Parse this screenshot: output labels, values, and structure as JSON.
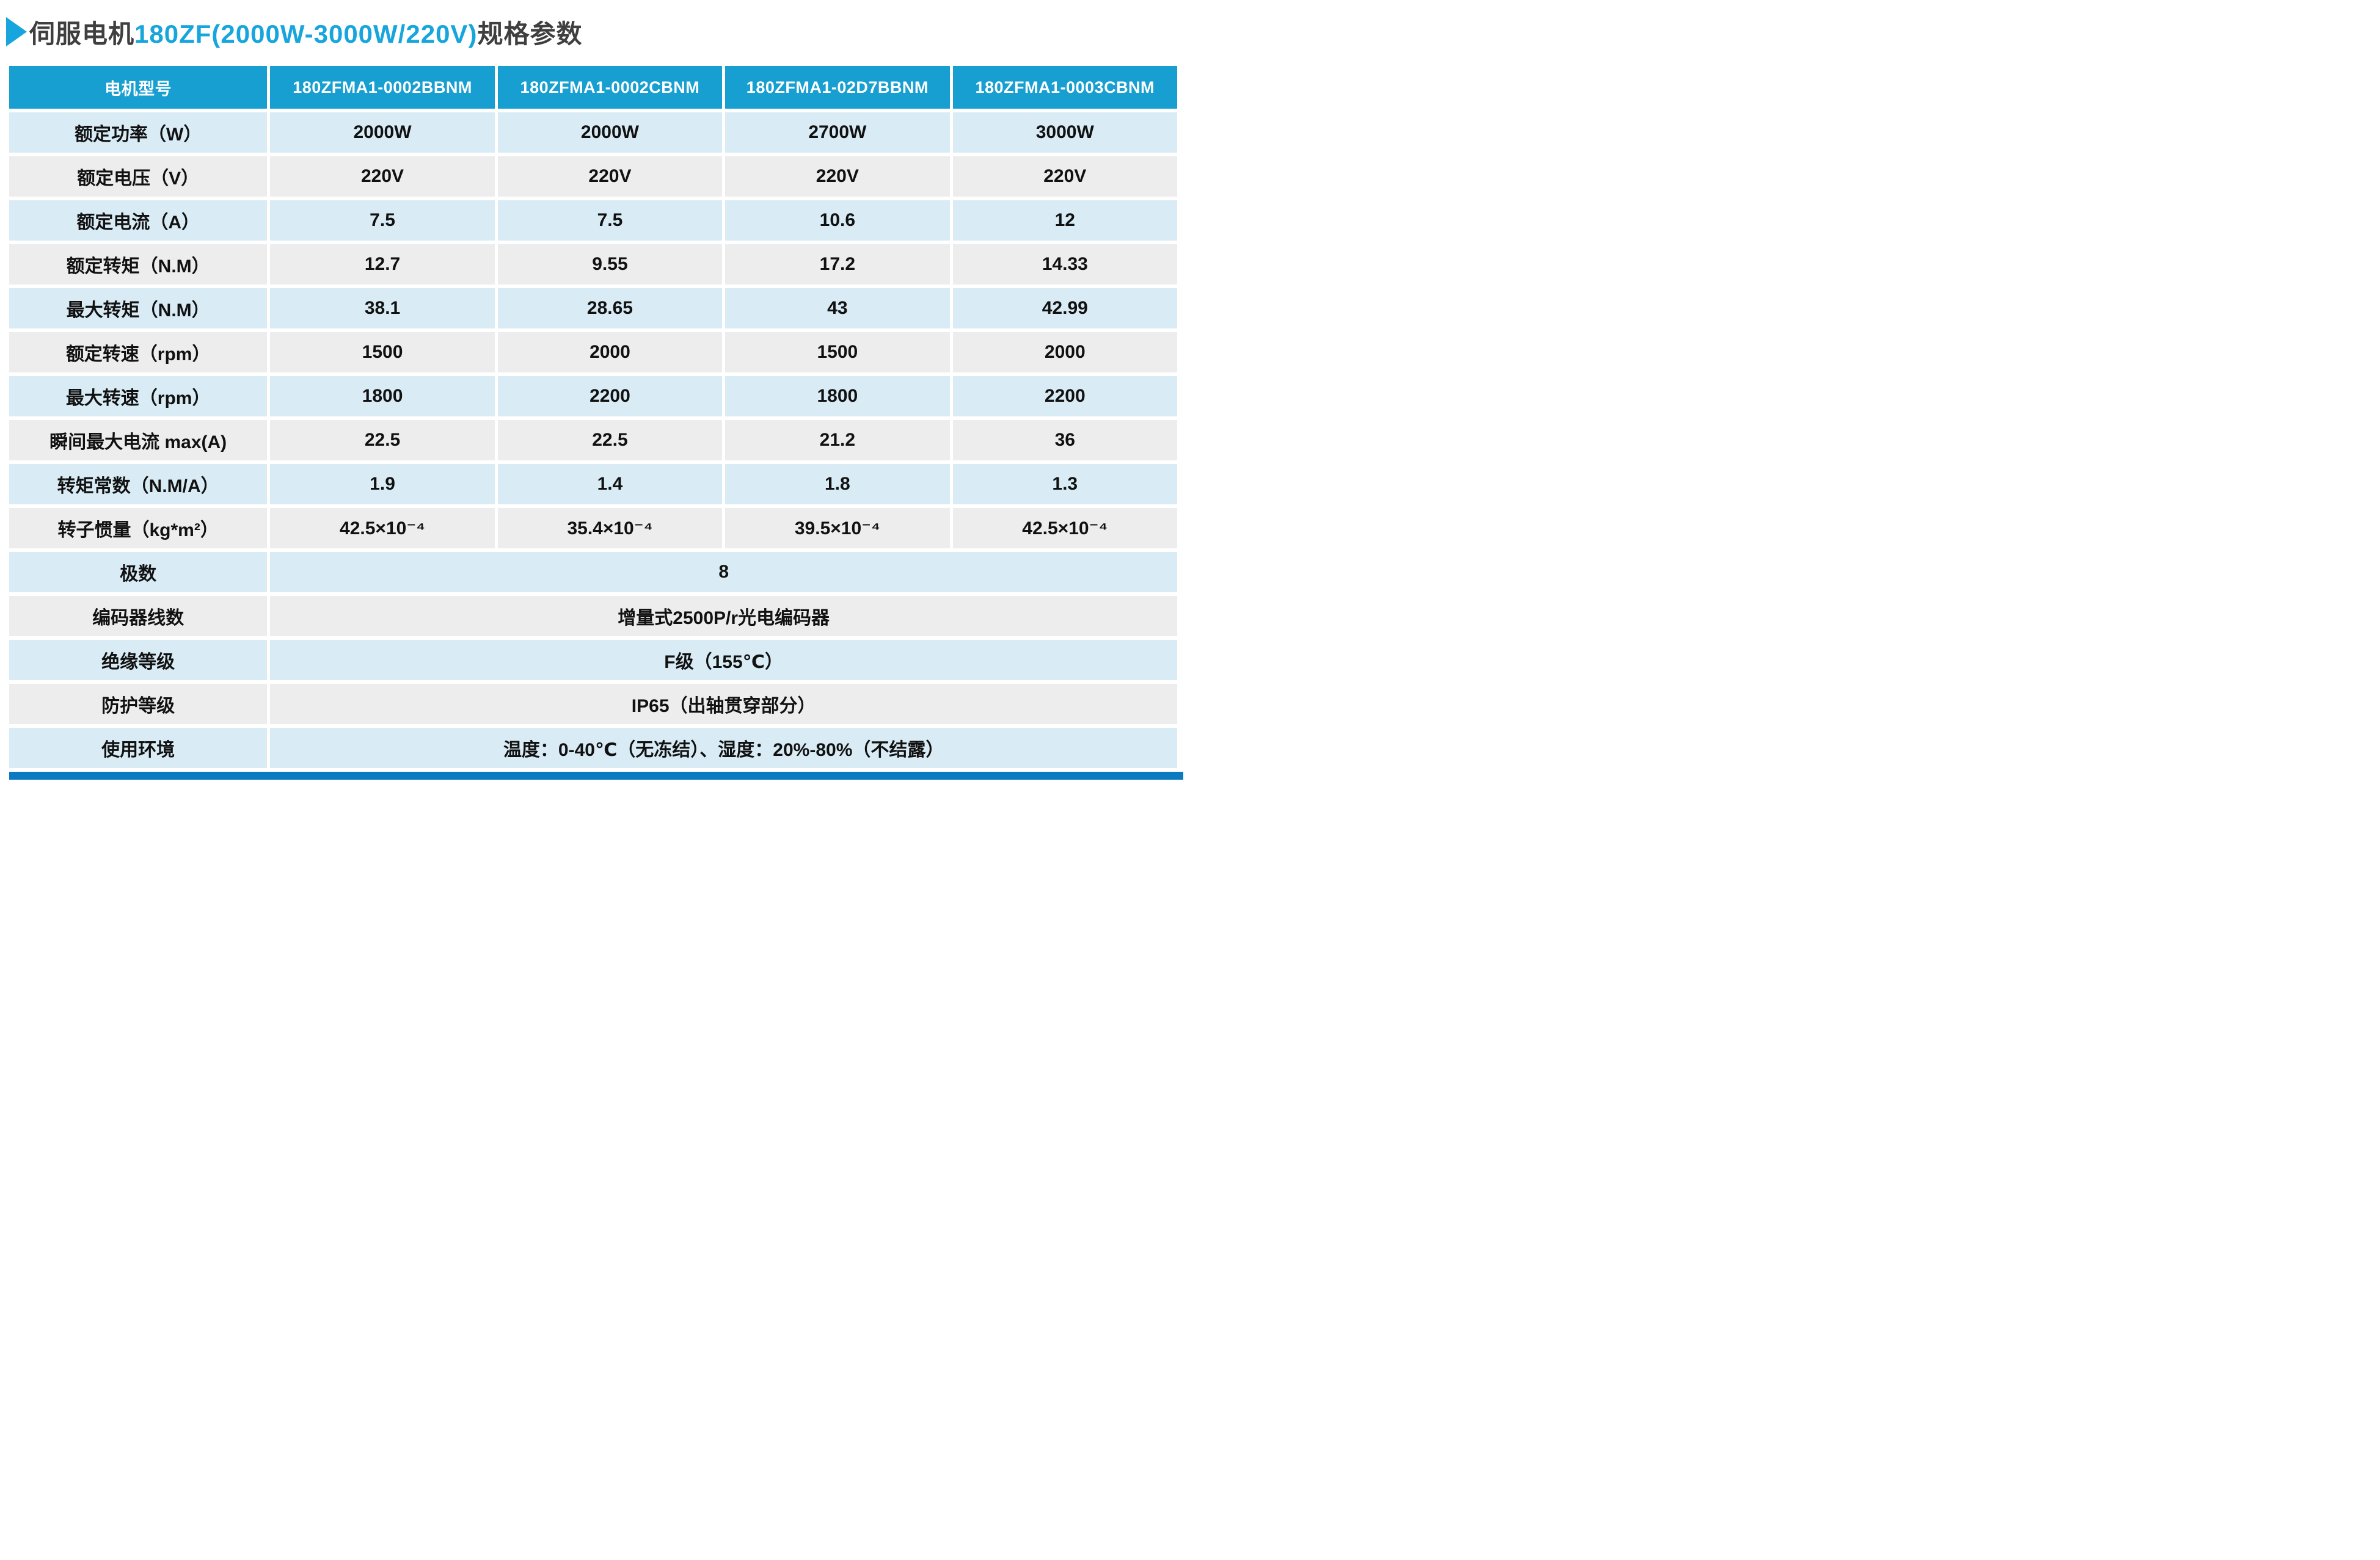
{
  "page": {
    "title": {
      "prefix": "伺服电机",
      "highlight": "180ZF(2000W-3000W/220V)",
      "suffix": "规格参数"
    },
    "colors": {
      "accent_blue": "#16a5dc",
      "header_blue": "#189fd1",
      "row_light_blue": "#d9ecf6",
      "row_gray": "#ededed",
      "title_dark": "#3f3f3f",
      "bottom_bar_blue": "#0b7ac1"
    }
  },
  "table": {
    "header": [
      "电机型号",
      "180ZFMA1-0002BBNM",
      "180ZFMA1-0002CBNM",
      "180ZFMA1-02D7BBNM",
      "180ZFMA1-0003CBNM"
    ],
    "rows": [
      {
        "label": "额定功率（W）",
        "values": [
          "2000W",
          "2000W",
          "2700W",
          "3000W"
        ]
      },
      {
        "label": "额定电压（V）",
        "values": [
          "220V",
          "220V",
          "220V",
          "220V"
        ]
      },
      {
        "label": "额定电流（A）",
        "values": [
          "7.5",
          "7.5",
          "10.6",
          "12"
        ]
      },
      {
        "label": "额定转矩（N.M）",
        "values": [
          "12.7",
          "9.55",
          "17.2",
          "14.33"
        ]
      },
      {
        "label": "最大转矩（N.M）",
        "values": [
          "38.1",
          "28.65",
          "43",
          "42.99"
        ]
      },
      {
        "label": "额定转速（rpm）",
        "values": [
          "1500",
          "2000",
          "1500",
          "2000"
        ]
      },
      {
        "label": "最大转速（rpm）",
        "values": [
          "1800",
          "2200",
          "1800",
          "2200"
        ]
      },
      {
        "label": "瞬间最大电流 max(A)",
        "values": [
          "22.5",
          "22.5",
          "21.2",
          "36"
        ]
      },
      {
        "label": "转矩常数（N.M/A）",
        "values": [
          "1.9",
          "1.4",
          "1.8",
          "1.3"
        ]
      },
      {
        "label": "转子惯量（kg*m²）",
        "values": [
          "42.5×10⁻⁴",
          "35.4×10⁻⁴",
          "39.5×10⁻⁴",
          "42.5×10⁻⁴"
        ]
      },
      {
        "label": "极数",
        "merged": "8"
      },
      {
        "label": "编码器线数",
        "merged": "增量式2500P/r光电编码器"
      },
      {
        "label": "绝缘等级",
        "merged": "F级（155℃）"
      },
      {
        "label": "防护等级",
        "merged": "IP65（出轴贯穿部分）"
      },
      {
        "label": "使用环境",
        "merged": "温度：0-40℃（无冻结）、湿度：20%-80%（不结露）"
      }
    ]
  }
}
